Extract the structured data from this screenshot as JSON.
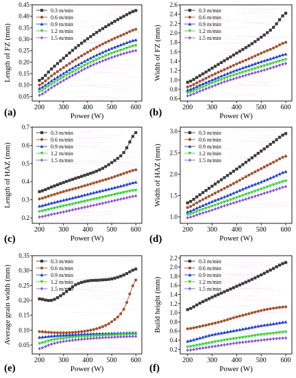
{
  "colors": {
    "s1": "#3a3a3a",
    "s2": "#a0522d",
    "s3": "#1f3fd0",
    "s4": "#3bd13b",
    "s5": "#8a55d8",
    "noise": "#ff9de6"
  },
  "chart_data": [
    {
      "type": "line",
      "panel_label": "(a)",
      "xlabel": "Power (W)",
      "ylabel": "Length of FZ (mm)",
      "xlim": [
        170,
        625
      ],
      "ylim": [
        0.03,
        0.45
      ],
      "xticks": [
        200,
        300,
        400,
        500,
        600
      ],
      "yticks": [
        0.05,
        0.1,
        0.15,
        0.2,
        0.25,
        0.3,
        0.35,
        0.4,
        0.45
      ],
      "ytick_labels": [
        "0.05",
        "0.10",
        "0.15",
        "0.20",
        "0.25",
        "0.30",
        "0.35",
        "0.40",
        "0.45"
      ],
      "x": [
        200,
        250,
        300,
        350,
        400,
        450,
        500,
        550,
        600
      ],
      "series": [
        {
          "name": "0.3 m/min",
          "values": [
            0.12,
            0.17,
            0.217,
            0.262,
            0.302,
            0.338,
            0.37,
            0.4,
            0.425
          ]
        },
        {
          "name": "0.6 m/min",
          "values": [
            0.1,
            0.14,
            0.176,
            0.211,
            0.243,
            0.272,
            0.298,
            0.321,
            0.343
          ]
        },
        {
          "name": "0.9 m/min",
          "values": [
            0.085,
            0.118,
            0.151,
            0.182,
            0.211,
            0.237,
            0.26,
            0.28,
            0.297
          ]
        },
        {
          "name": "1.2 m/min",
          "values": [
            0.07,
            0.103,
            0.135,
            0.164,
            0.192,
            0.216,
            0.238,
            0.256,
            0.272
          ]
        },
        {
          "name": "1.5 m/min",
          "values": [
            0.055,
            0.088,
            0.12,
            0.149,
            0.177,
            0.2,
            0.22,
            0.237,
            0.25
          ]
        }
      ]
    },
    {
      "type": "line",
      "panel_label": "(b)",
      "xlabel": "Power (W)",
      "ylabel": "Width of FZ (mm)",
      "xlim": [
        170,
        625
      ],
      "ylim": [
        0.55,
        2.6
      ],
      "xticks": [
        200,
        300,
        400,
        500,
        600
      ],
      "yticks": [
        0.6,
        0.8,
        1.0,
        1.2,
        1.4,
        1.6,
        1.8,
        2.0,
        2.2,
        2.4,
        2.6
      ],
      "ytick_labels": [
        "0.6",
        "0.8",
        "1.0",
        "1.2",
        "1.4",
        "1.6",
        "1.8",
        "2.0",
        "2.2",
        "2.4",
        "2.6"
      ],
      "x": [
        200,
        250,
        300,
        350,
        400,
        450,
        500,
        550,
        600
      ],
      "series": [
        {
          "name": "0.3 m/min",
          "values": [
            0.95,
            1.09,
            1.25,
            1.41,
            1.57,
            1.73,
            1.91,
            2.12,
            2.42
          ]
        },
        {
          "name": "0.6 m/min",
          "values": [
            0.85,
            0.97,
            1.1,
            1.22,
            1.34,
            1.45,
            1.57,
            1.68,
            1.8
          ]
        },
        {
          "name": "0.9 m/min",
          "values": [
            0.78,
            0.89,
            1.0,
            1.11,
            1.21,
            1.3,
            1.39,
            1.47,
            1.55
          ]
        },
        {
          "name": "1.2 m/min",
          "values": [
            0.72,
            0.82,
            0.93,
            1.03,
            1.12,
            1.2,
            1.28,
            1.36,
            1.43
          ]
        },
        {
          "name": "1.5 m/min",
          "values": [
            0.66,
            0.76,
            0.86,
            0.96,
            1.04,
            1.12,
            1.19,
            1.27,
            1.35
          ]
        }
      ]
    },
    {
      "type": "line",
      "panel_label": "(c)",
      "xlabel": "Power (W)",
      "ylabel": "Length of HAZ (mm)",
      "xlim": [
        170,
        625
      ],
      "ylim": [
        0.17,
        0.7
      ],
      "xticks": [
        200,
        300,
        400,
        500,
        600
      ],
      "yticks": [
        0.2,
        0.3,
        0.4,
        0.5,
        0.6,
        0.7
      ],
      "ytick_labels": [
        "0.2",
        "0.3",
        "0.4",
        "0.5",
        "0.6",
        "0.7"
      ],
      "x": [
        200,
        250,
        300,
        350,
        400,
        450,
        500,
        550,
        600
      ],
      "series": [
        {
          "name": "0.3 m/min",
          "values": [
            0.345,
            0.37,
            0.395,
            0.418,
            0.44,
            0.465,
            0.505,
            0.56,
            0.67
          ]
        },
        {
          "name": "0.6 m/min",
          "values": [
            0.305,
            0.325,
            0.345,
            0.363,
            0.382,
            0.402,
            0.422,
            0.445,
            0.465
          ]
        },
        {
          "name": "0.9 m/min",
          "values": [
            0.265,
            0.282,
            0.298,
            0.314,
            0.331,
            0.347,
            0.363,
            0.38,
            0.397
          ]
        },
        {
          "name": "1.2 m/min",
          "values": [
            0.235,
            0.25,
            0.265,
            0.28,
            0.295,
            0.31,
            0.325,
            0.34,
            0.352
          ]
        },
        {
          "name": "1.5 m/min",
          "values": [
            0.205,
            0.219,
            0.233,
            0.248,
            0.262,
            0.277,
            0.292,
            0.307,
            0.321
          ]
        }
      ]
    },
    {
      "type": "line",
      "panel_label": "(d)",
      "xlabel": "Power (W)",
      "ylabel": "Width of HAZ (mm)",
      "xlim": [
        170,
        625
      ],
      "ylim": [
        0.85,
        3.1
      ],
      "xticks": [
        200,
        300,
        400,
        500,
        600
      ],
      "yticks": [
        1.0,
        1.5,
        2.0,
        2.5,
        3.0
      ],
      "ytick_labels": [
        "1.0",
        "1.5",
        "2.0",
        "2.5",
        "3.0"
      ],
      "x": [
        200,
        250,
        300,
        350,
        400,
        450,
        500,
        550,
        600
      ],
      "series": [
        {
          "name": "0.3 m/min",
          "values": [
            1.33,
            1.52,
            1.72,
            1.92,
            2.12,
            2.33,
            2.54,
            2.75,
            2.95
          ]
        },
        {
          "name": "0.6 m/min",
          "values": [
            1.22,
            1.37,
            1.52,
            1.67,
            1.82,
            1.98,
            2.13,
            2.28,
            2.42
          ]
        },
        {
          "name": "0.9 m/min",
          "values": [
            1.12,
            1.24,
            1.36,
            1.47,
            1.59,
            1.71,
            1.82,
            1.94,
            2.06
          ]
        },
        {
          "name": "1.2 m/min",
          "values": [
            1.05,
            1.15,
            1.25,
            1.35,
            1.45,
            1.55,
            1.65,
            1.75,
            1.84
          ]
        },
        {
          "name": "1.5 m/min",
          "values": [
            0.98,
            1.07,
            1.16,
            1.26,
            1.35,
            1.44,
            1.53,
            1.62,
            1.71
          ]
        }
      ]
    },
    {
      "type": "line",
      "panel_label": "(e)",
      "xlabel": "Power (W)",
      "ylabel": "Average grain width (mm)",
      "xlim": [
        170,
        625
      ],
      "ylim": [
        0.02,
        0.35
      ],
      "xticks": [
        200,
        300,
        400,
        500,
        600
      ],
      "yticks": [
        0.05,
        0.1,
        0.15,
        0.2,
        0.25,
        0.3,
        0.35
      ],
      "ytick_labels": [
        "0.05",
        "0.10",
        "0.15",
        "0.20",
        "0.25",
        "0.30",
        "0.35"
      ],
      "x": [
        200,
        250,
        300,
        350,
        400,
        450,
        500,
        550,
        600
      ],
      "series": [
        {
          "name": "0.3 m/min",
          "values": [
            0.205,
            0.2,
            0.222,
            0.252,
            0.265,
            0.268,
            0.272,
            0.285,
            0.305
          ]
        },
        {
          "name": "0.6 m/min",
          "values": [
            0.095,
            0.092,
            0.091,
            0.093,
            0.098,
            0.108,
            0.128,
            0.17,
            0.268
          ]
        },
        {
          "name": "0.9 m/min",
          "values": [
            0.076,
            0.08,
            0.083,
            0.085,
            0.087,
            0.088,
            0.089,
            0.09,
            0.091
          ]
        },
        {
          "name": "1.2 m/min",
          "values": [
            0.055,
            0.066,
            0.072,
            0.076,
            0.079,
            0.081,
            0.083,
            0.085,
            0.086
          ]
        },
        {
          "name": "1.5 m/min",
          "values": [
            0.038,
            0.053,
            0.062,
            0.067,
            0.071,
            0.074,
            0.076,
            0.078,
            0.079
          ]
        }
      ]
    },
    {
      "type": "line",
      "panel_label": "(f)",
      "xlabel": "Power (W)",
      "ylabel": "Build height (mm)",
      "xlim": [
        170,
        625
      ],
      "ylim": [
        0.1,
        2.25
      ],
      "xticks": [
        200,
        300,
        400,
        500,
        600
      ],
      "yticks": [
        0.2,
        0.4,
        0.6,
        0.8,
        1.0,
        1.2,
        1.4,
        1.6,
        1.8,
        2.0,
        2.2
      ],
      "ytick_labels": [
        "0.2",
        "0.4",
        "0.6",
        "0.8",
        "1.0",
        "1.2",
        "1.4",
        "1.6",
        "1.8",
        "2.0",
        "2.2"
      ],
      "x": [
        200,
        250,
        300,
        350,
        400,
        450,
        500,
        550,
        600
      ],
      "series": [
        {
          "name": "0.3 m/min",
          "values": [
            1.07,
            1.21,
            1.34,
            1.46,
            1.58,
            1.7,
            1.83,
            1.97,
            2.1
          ]
        },
        {
          "name": "0.6 m/min",
          "values": [
            0.65,
            0.7,
            0.76,
            0.83,
            0.91,
            0.98,
            1.05,
            1.1,
            1.13
          ]
        },
        {
          "name": "0.9 m/min",
          "values": [
            0.38,
            0.45,
            0.52,
            0.57,
            0.62,
            0.67,
            0.72,
            0.76,
            0.8
          ]
        },
        {
          "name": "1.2 m/min",
          "values": [
            0.25,
            0.3,
            0.35,
            0.4,
            0.44,
            0.48,
            0.52,
            0.55,
            0.58
          ]
        },
        {
          "name": "1.5 m/min",
          "values": [
            0.18,
            0.22,
            0.26,
            0.3,
            0.34,
            0.37,
            0.4,
            0.43,
            0.45
          ]
        }
      ]
    }
  ]
}
